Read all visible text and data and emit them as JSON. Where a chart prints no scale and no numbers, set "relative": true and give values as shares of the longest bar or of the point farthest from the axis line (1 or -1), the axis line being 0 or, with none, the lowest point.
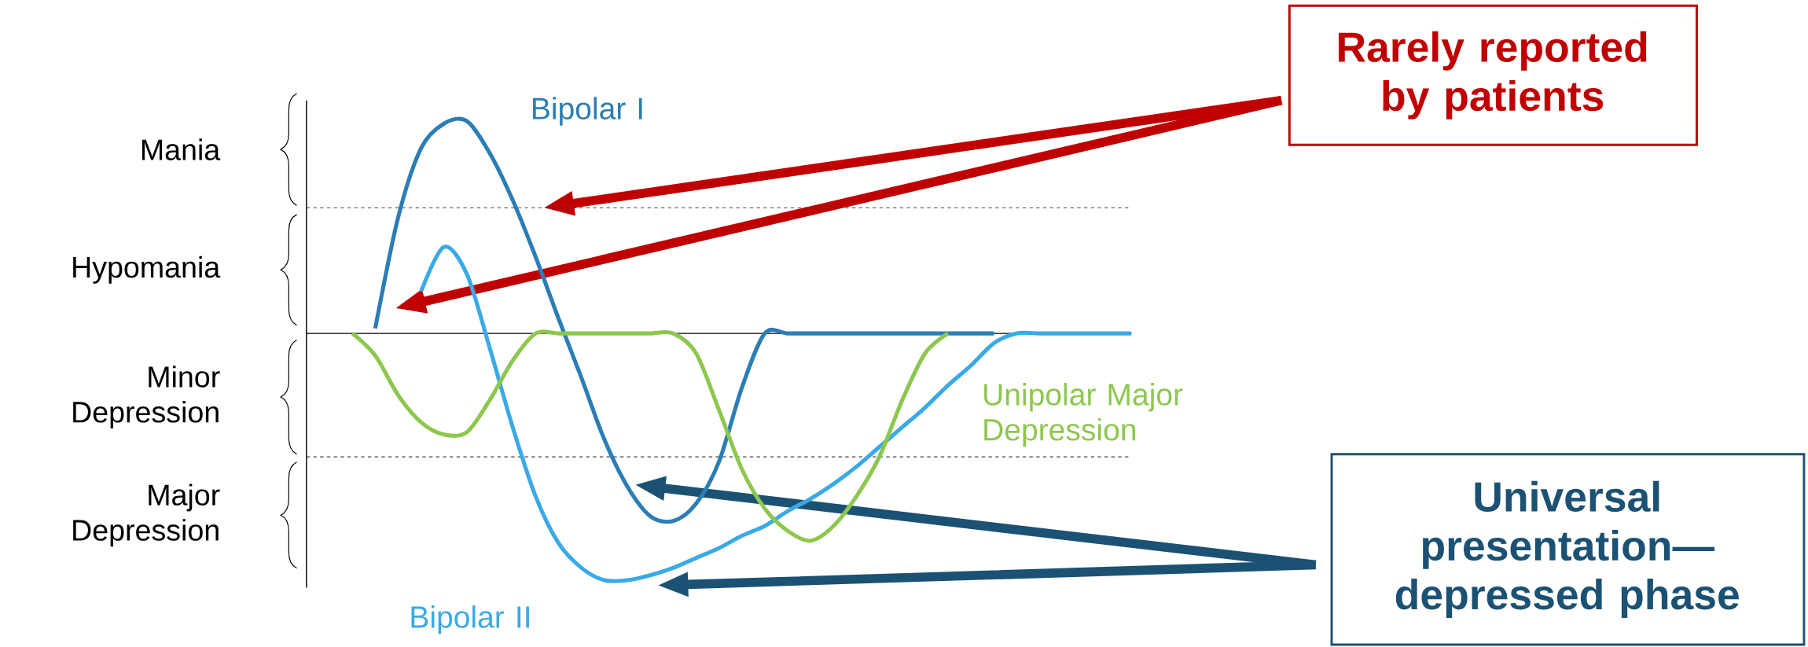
{
  "chart_data": {
    "type": "line",
    "relative": true,
    "legend": false,
    "marker": "none",
    "line_style": "solid",
    "categories": [
      null,
      null,
      null,
      null,
      null,
      null,
      null,
      null,
      null,
      null,
      null,
      null,
      null,
      null,
      null,
      null,
      null,
      null,
      null,
      null,
      null,
      null,
      null,
      null,
      null,
      null,
      null,
      null,
      null,
      null,
      null,
      null,
      null,
      null,
      null,
      null,
      null
    ],
    "series": [
      {
        "name": "Bipolar I",
        "color": "#2b7db5",
        "values": [
          null,
          null,
          null,
          0.02,
          0.47,
          0.75,
          0.85,
          0.86,
          0.73,
          0.54,
          0.31,
          0.06,
          -0.18,
          -0.43,
          -0.62,
          -0.74,
          -0.76,
          -0.69,
          -0.52,
          -0.22,
          0,
          0,
          0,
          0,
          0,
          0,
          0,
          0,
          0,
          0,
          0,
          null,
          null,
          null,
          null,
          null,
          null
        ]
      },
      {
        "name": "Bipolar II",
        "color": "#39aae6",
        "values": [
          null,
          null,
          null,
          null,
          null,
          0.17,
          0.35,
          0.24,
          -0.06,
          -0.38,
          -0.66,
          -0.85,
          -0.95,
          -1.0,
          -1.0,
          -0.98,
          -0.95,
          -0.91,
          -0.87,
          -0.82,
          -0.78,
          -0.72,
          -0.67,
          -0.61,
          -0.54,
          -0.46,
          -0.38,
          -0.3,
          -0.21,
          -0.13,
          -0.04,
          0,
          0,
          0,
          0,
          0,
          0
        ]
      },
      {
        "name": "Unipolar Major Depression",
        "color": "#8dc74e",
        "values": [
          null,
          null,
          0,
          -0.09,
          -0.25,
          -0.36,
          -0.41,
          -0.4,
          -0.27,
          -0.11,
          0,
          0,
          0,
          0,
          0,
          0,
          0,
          -0.08,
          -0.31,
          -0.55,
          -0.71,
          -0.8,
          -0.84,
          -0.78,
          -0.66,
          -0.5,
          -0.27,
          -0.08,
          0,
          null,
          null,
          null,
          null,
          null,
          null,
          null,
          null
        ]
      }
    ],
    "ref_lines": [
      {
        "axis": "y",
        "value": 0.509,
        "color": "#404040",
        "line_style": "dashed"
      },
      {
        "axis": "y",
        "value": -0.5,
        "color": "#404040",
        "line_style": "dashed"
      }
    ],
    "annotations": [
      "Mania",
      "Hypomania",
      "Minor Depression",
      "Major Depression",
      "Rarely reported by patients",
      "Universal presentation—depressed phase"
    ]
  }
}
